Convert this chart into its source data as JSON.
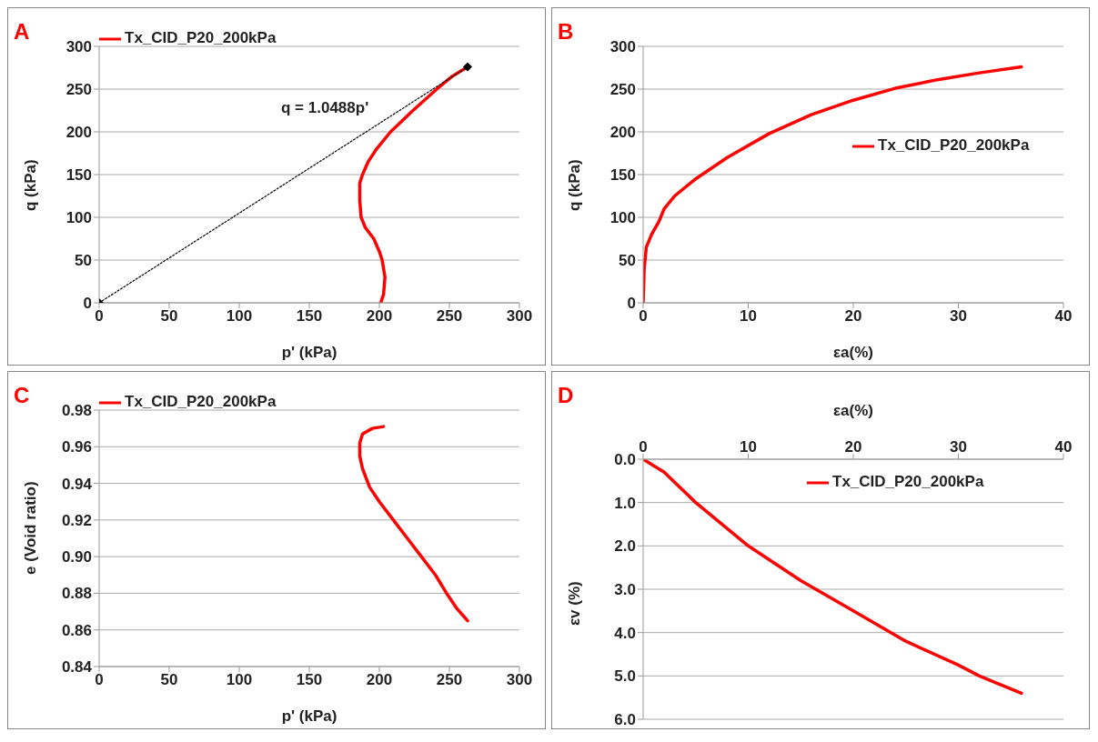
{
  "chart_data": [
    {
      "type": "line",
      "annotations": [
        "A",
        "q = 1.0488p'"
      ],
      "xlabel": "p' (kPa)",
      "ylabel": "q (kPa)",
      "xlim": [
        0,
        300
      ],
      "xticks": [
        0,
        50,
        100,
        150,
        200,
        250,
        300
      ],
      "ylim": [
        0,
        300
      ],
      "yticks": [
        0,
        50,
        100,
        150,
        200,
        250,
        300
      ],
      "grid": "y",
      "legend": "top left",
      "marker": "none",
      "series": [
        {
          "name": "Tx_CID_P20_200kPa",
          "color": "#ff0000",
          "x": [
            201,
            203,
            204,
            202,
            200,
            196,
            190,
            187,
            186,
            186,
            188,
            192,
            198,
            208,
            224,
            241,
            252,
            263
          ],
          "values": [
            0,
            10,
            30,
            50,
            60,
            75,
            88,
            100,
            120,
            140,
            150,
            165,
            180,
            200,
            225,
            250,
            265,
            276
          ]
        },
        {
          "color": "#000000",
          "marker": "diamond",
          "line_style": "dotted",
          "x": [
            0,
            263
          ],
          "values": [
            0,
            276
          ]
        }
      ]
    },
    {
      "type": "line",
      "annotations": [
        "B"
      ],
      "xlabel": "εa(%)",
      "ylabel": "q (kPa)",
      "xlim": [
        0,
        40
      ],
      "xticks": [
        0,
        10,
        20,
        30,
        40
      ],
      "ylim": [
        0,
        300
      ],
      "yticks": [
        0,
        50,
        100,
        150,
        200,
        250,
        300
      ],
      "grid": "y",
      "legend": "right",
      "marker": "none",
      "series": [
        {
          "name": "Tx_CID_P20_200kPa",
          "color": "#ff0000",
          "x": [
            0,
            0.1,
            0.3,
            0.8,
            1.5,
            2,
            3,
            5,
            8,
            12,
            16,
            20,
            24,
            28,
            32,
            36
          ],
          "values": [
            0,
            40,
            65,
            80,
            95,
            110,
            125,
            145,
            170,
            198,
            220,
            237,
            251,
            261,
            269,
            276
          ]
        }
      ]
    },
    {
      "type": "line",
      "annotations": [
        "C"
      ],
      "xlabel": "p' (kPa)",
      "ylabel": "e (Void ratio)",
      "xlim": [
        0,
        300
      ],
      "xticks": [
        0,
        50,
        100,
        150,
        200,
        250,
        300
      ],
      "ylim": [
        0.84,
        0.98
      ],
      "yticks": [
        {
          "value": 0.84,
          "label": "0.84"
        },
        {
          "value": 0.86,
          "label": "0.86"
        },
        {
          "value": 0.88,
          "label": "0.88"
        },
        {
          "value": 0.9,
          "label": "0.90"
        },
        {
          "value": 0.92,
          "label": "0.92"
        },
        {
          "value": 0.94,
          "label": "0.94"
        },
        {
          "value": 0.96,
          "label": "0.96"
        },
        {
          "value": 0.98,
          "label": "0.98"
        }
      ],
      "grid": "y",
      "legend": "top left",
      "marker": "none",
      "series": [
        {
          "name": "Tx_CID_P20_200kPa",
          "color": "#ff0000",
          "x": [
            203,
            195,
            188,
            186,
            186,
            188,
            193,
            200,
            210,
            220,
            230,
            240,
            248,
            255,
            263
          ],
          "values": [
            0.971,
            0.97,
            0.967,
            0.962,
            0.955,
            0.948,
            0.938,
            0.93,
            0.92,
            0.91,
            0.9,
            0.89,
            0.88,
            0.872,
            0.865
          ]
        }
      ]
    },
    {
      "type": "line",
      "annotations": [
        "D"
      ],
      "xlabel": "εa(%)",
      "ylabel": "εv (%)",
      "xlim": [
        0,
        40
      ],
      "xticks": [
        0,
        10,
        20,
        30,
        40
      ],
      "ylim": [
        6,
        0
      ],
      "yticks": [
        {
          "value": 0,
          "label": "0.0"
        },
        {
          "value": 1,
          "label": "1.0"
        },
        {
          "value": 2,
          "label": "2.0"
        },
        {
          "value": 3,
          "label": "3.0"
        },
        {
          "value": 4,
          "label": "4.0"
        },
        {
          "value": 5,
          "label": "5.0"
        },
        {
          "value": 6,
          "label": "6.0"
        }
      ],
      "grid": "y",
      "legend": "top right",
      "marker": "none",
      "series": [
        {
          "name": "Tx_CID_P20_200kPa",
          "color": "#ff0000",
          "x": [
            0,
            2,
            5,
            10,
            15,
            20,
            25,
            30,
            32,
            36
          ],
          "values": [
            0,
            0.3,
            1.0,
            2.0,
            2.8,
            3.5,
            4.2,
            4.75,
            5.0,
            5.4
          ]
        }
      ]
    }
  ]
}
